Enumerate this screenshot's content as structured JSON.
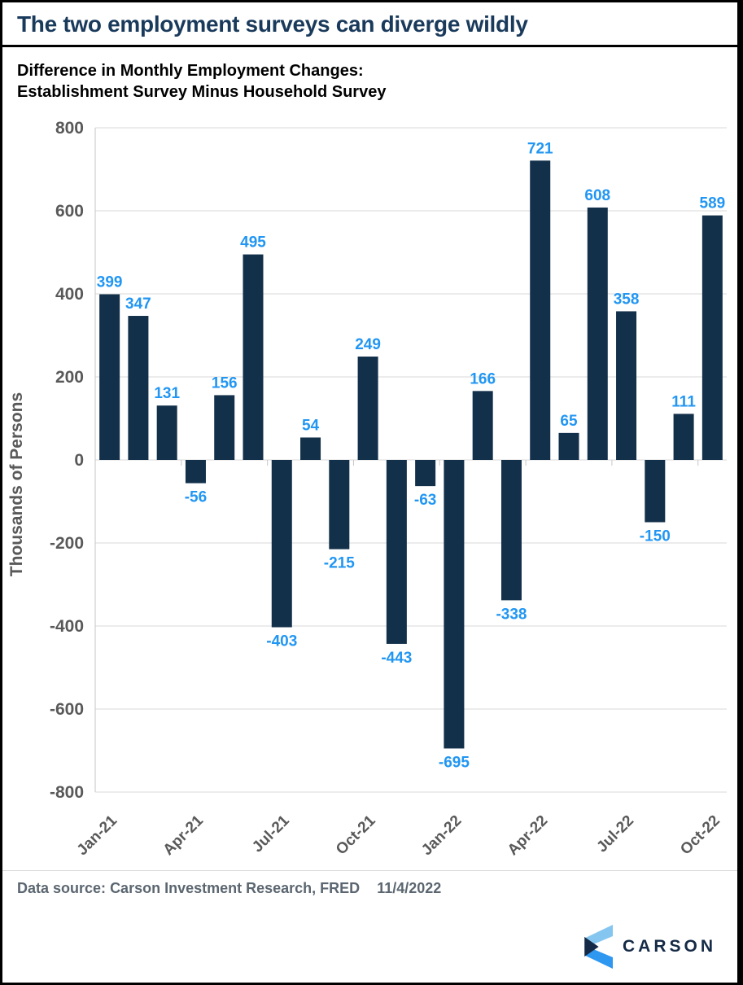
{
  "page": {
    "title": "The two employment surveys can diverge wildly",
    "subtitle_line1": "Difference in Monthly Employment Changes:",
    "subtitle_line2": "Establishment Survey Minus Household Survey"
  },
  "chart_data": {
    "type": "bar",
    "title": "Difference in Monthly Employment Changes: Establishment Survey Minus Household Survey",
    "ylabel": "Thousands of Persons",
    "ylim": [
      -800,
      800
    ],
    "y_tick_labels": [
      800,
      600,
      400,
      200,
      0,
      -200,
      -400,
      -600,
      -800
    ],
    "grid": true,
    "x_tick_labels": [
      "Jan-21",
      "Apr-21",
      "Jul-21",
      "Oct-21",
      "Jan-22",
      "Apr-22",
      "Jul-22",
      "Oct-22"
    ],
    "x_tick_indices": [
      0,
      3,
      6,
      9,
      12,
      15,
      18,
      21
    ],
    "values": [
      399,
      347,
      131,
      -56,
      156,
      495,
      -403,
      54,
      -215,
      249,
      -443,
      -63,
      -695,
      166,
      -338,
      721,
      65,
      608,
      358,
      -150,
      111,
      589
    ],
    "bar_color": "#13304b",
    "label_color": "#2196f3",
    "axis_text_color": "#595959",
    "grid_color": "#d9d9d9",
    "axis_line_color": "#c6c6c6"
  },
  "footer": {
    "source_label": "Data source:",
    "source_value": "Carson Investment Research, FRED",
    "date": "11/4/2022",
    "logo_text": "CARSON",
    "logo_colors": {
      "navy": "#152a46",
      "light_blue": "#85c6f0",
      "bright_blue": "#2e97f0"
    }
  }
}
